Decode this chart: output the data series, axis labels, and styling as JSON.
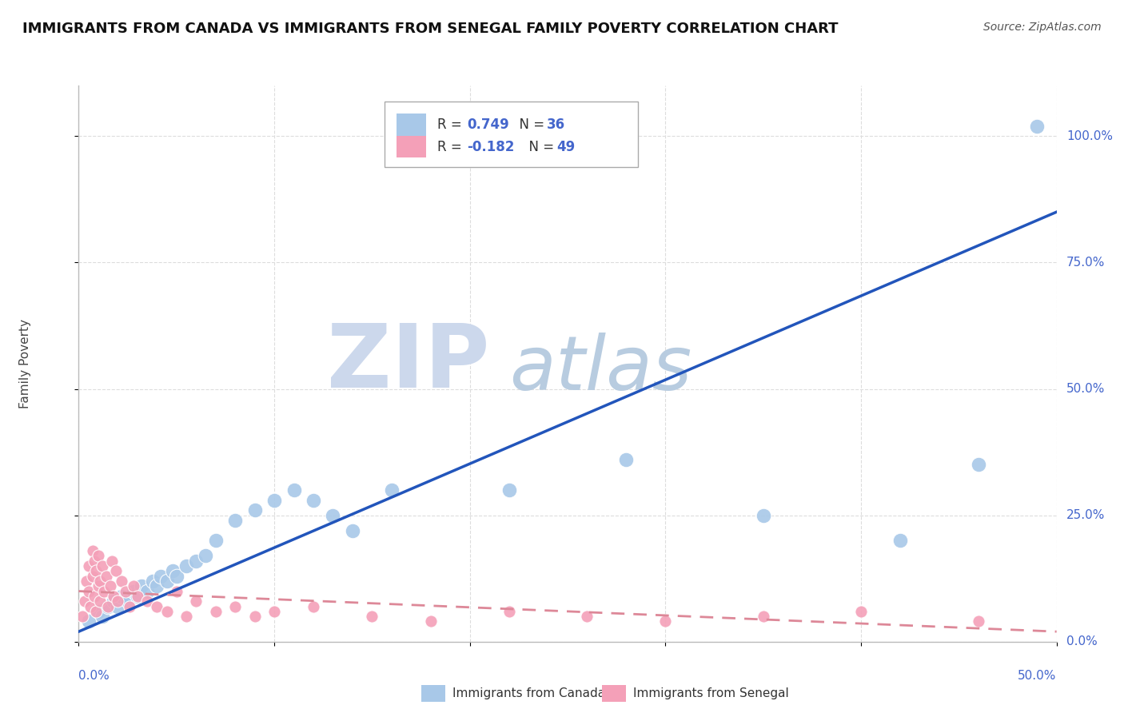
{
  "title": "IMMIGRANTS FROM CANADA VS IMMIGRANTS FROM SENEGAL FAMILY POVERTY CORRELATION CHART",
  "source": "Source: ZipAtlas.com",
  "xlabel_bottom_left": "0.0%",
  "xlabel_bottom_right": "50.0%",
  "ylabel_label": "Family Poverty",
  "ytick_labels": [
    "0.0%",
    "25.0%",
    "50.0%",
    "75.0%",
    "100.0%"
  ],
  "legend_label_canada": "Immigrants from Canada",
  "legend_label_senegal": "Immigrants from Senegal",
  "color_canada": "#a8c8e8",
  "color_senegal": "#f4a0b8",
  "color_regression_canada": "#2255bb",
  "color_regression_senegal": "#dd8898",
  "color_text_blue": "#4466cc",
  "watermark_zip_color": "#ccd8ec",
  "watermark_atlas_color": "#b8cce0",
  "background_color": "#ffffff",
  "grid_color": "#dddddd",
  "xlim": [
    0.0,
    0.5
  ],
  "ylim": [
    0.0,
    1.1
  ],
  "canada_x": [
    0.005,
    0.01,
    0.012,
    0.015,
    0.018,
    0.02,
    0.022,
    0.025,
    0.028,
    0.03,
    0.032,
    0.035,
    0.038,
    0.04,
    0.042,
    0.045,
    0.048,
    0.05,
    0.055,
    0.06,
    0.065,
    0.07,
    0.08,
    0.09,
    0.1,
    0.11,
    0.12,
    0.13,
    0.14,
    0.16,
    0.22,
    0.28,
    0.35,
    0.42,
    0.46,
    0.49
  ],
  "canada_y": [
    0.04,
    0.06,
    0.05,
    0.07,
    0.08,
    0.07,
    0.09,
    0.08,
    0.1,
    0.09,
    0.11,
    0.1,
    0.12,
    0.11,
    0.13,
    0.12,
    0.14,
    0.13,
    0.15,
    0.16,
    0.17,
    0.2,
    0.24,
    0.26,
    0.28,
    0.3,
    0.28,
    0.25,
    0.22,
    0.3,
    0.3,
    0.36,
    0.25,
    0.2,
    0.35,
    1.02
  ],
  "senegal_x": [
    0.002,
    0.003,
    0.004,
    0.005,
    0.005,
    0.006,
    0.007,
    0.007,
    0.008,
    0.008,
    0.009,
    0.009,
    0.01,
    0.01,
    0.011,
    0.011,
    0.012,
    0.013,
    0.014,
    0.015,
    0.016,
    0.017,
    0.018,
    0.019,
    0.02,
    0.022,
    0.024,
    0.026,
    0.028,
    0.03,
    0.035,
    0.04,
    0.045,
    0.05,
    0.055,
    0.06,
    0.07,
    0.08,
    0.09,
    0.1,
    0.12,
    0.15,
    0.18,
    0.22,
    0.26,
    0.3,
    0.35,
    0.4,
    0.46
  ],
  "senegal_y": [
    0.05,
    0.08,
    0.12,
    0.1,
    0.15,
    0.07,
    0.13,
    0.18,
    0.09,
    0.16,
    0.06,
    0.14,
    0.11,
    0.17,
    0.08,
    0.12,
    0.15,
    0.1,
    0.13,
    0.07,
    0.11,
    0.16,
    0.09,
    0.14,
    0.08,
    0.12,
    0.1,
    0.07,
    0.11,
    0.09,
    0.08,
    0.07,
    0.06,
    0.1,
    0.05,
    0.08,
    0.06,
    0.07,
    0.05,
    0.06,
    0.07,
    0.05,
    0.04,
    0.06,
    0.05,
    0.04,
    0.05,
    0.06,
    0.04
  ]
}
